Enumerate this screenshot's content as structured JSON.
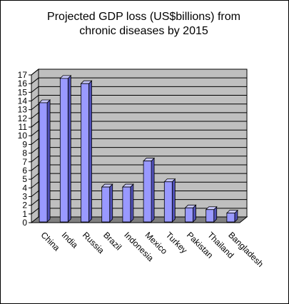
{
  "chart_data": {
    "type": "bar",
    "title_lines": [
      "Projected GDP loss (US$billions) from",
      "chronic diseases by 2015"
    ],
    "xlabel": "",
    "ylabel": "",
    "categories": [
      "China",
      "India",
      "Russia",
      "Brazil",
      "Indonesia",
      "Mexico",
      "Turkey",
      "Pakistan",
      "Thailand",
      "Bangladesh"
    ],
    "values": [
      13.8,
      16.6,
      16.0,
      4.1,
      4.1,
      7.1,
      4.7,
      1.7,
      1.5,
      1.1
    ],
    "ylim": [
      0,
      17
    ],
    "yticks": [
      "0",
      "1",
      "2",
      "3",
      "4",
      "5",
      "6",
      "7",
      "8",
      "9",
      "10",
      "11",
      "12",
      "13",
      "14",
      "15",
      "16",
      "17"
    ],
    "grid": true,
    "legend": "none",
    "colors": {
      "bar_front": "#9999ff",
      "bar_side": "#5050b8",
      "bar_top": "#c8c8ff",
      "plot_bg": "#bfbfbf",
      "floor": "#808080"
    }
  }
}
